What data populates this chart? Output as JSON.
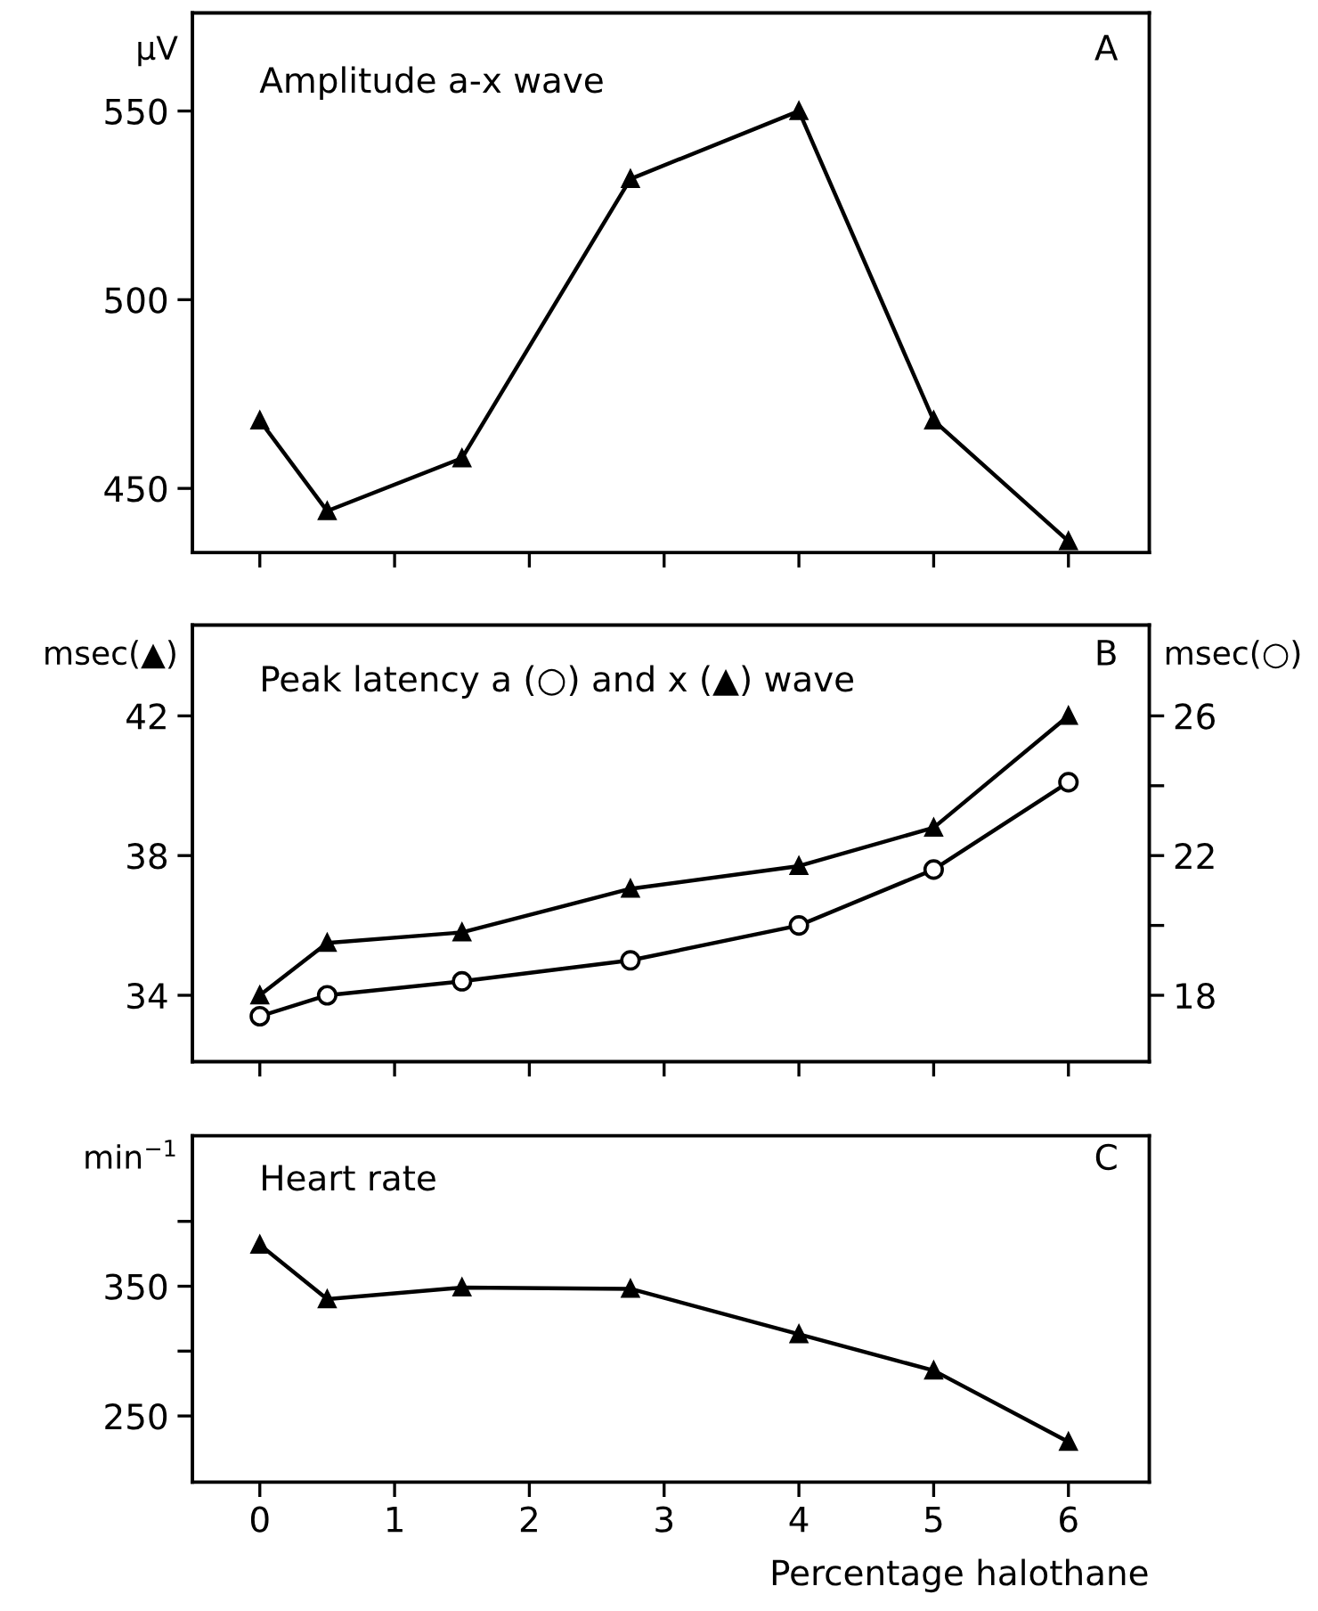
{
  "chart_data": [
    {
      "type": "line",
      "title": "Amplitude a-x wave",
      "ylabel": "µV",
      "annotations": [
        "A"
      ],
      "x": [
        0,
        0.5,
        1.5,
        2.75,
        4,
        5,
        6
      ],
      "series": [
        {
          "color": "#000000",
          "marker": "triangle",
          "values": [
            468,
            444,
            458,
            532,
            550,
            468,
            436
          ]
        }
      ],
      "xlim": [
        -0.5,
        6.6
      ],
      "xticks": [
        {
          "value": 0,
          "label": null
        },
        {
          "value": 1,
          "label": null
        },
        {
          "value": 2,
          "label": null
        },
        {
          "value": 3,
          "label": null
        },
        {
          "value": 4,
          "label": null
        },
        {
          "value": 5,
          "label": null
        },
        {
          "value": 6,
          "label": null
        }
      ],
      "ylim": [
        433,
        576
      ],
      "yticks": [
        450,
        500,
        550
      ],
      "tick_labels": "y",
      "line_style": "solid"
    },
    {
      "type": "line",
      "title": "Peak latency a (○) and x (▲) wave",
      "ylabel": "msec(▲)",
      "y2label": "msec(○)",
      "annotations": [
        "B"
      ],
      "x": [
        0,
        0.5,
        1.5,
        2.75,
        4,
        5,
        6
      ],
      "series": [
        {
          "color": "#000000",
          "marker": "triangle",
          "values": [
            34,
            35.5,
            35.8,
            37.05,
            37.7,
            38.8,
            42
          ]
        },
        {
          "color": "#000000",
          "marker": "circle",
          "axis": "y2",
          "values": [
            17.4,
            18,
            18.4,
            19,
            20,
            21.6,
            24.1
          ]
        }
      ],
      "xlim": [
        -0.5,
        6.6
      ],
      "xticks": [
        {
          "value": 0,
          "label": null
        },
        {
          "value": 1,
          "label": null
        },
        {
          "value": 2,
          "label": null
        },
        {
          "value": 3,
          "label": null
        },
        {
          "value": 4,
          "label": null
        },
        {
          "value": 5,
          "label": null
        },
        {
          "value": 6,
          "label": null
        }
      ],
      "ylim": [
        32.1,
        44.6
      ],
      "yticks": [
        34,
        38,
        42
      ],
      "y2lim": [
        16.1,
        28.6
      ],
      "y2ticks": [
        18,
        {
          "value": 20,
          "label": null
        },
        22,
        {
          "value": 24,
          "label": null
        },
        26
      ],
      "tick_labels": "y",
      "line_style": "solid"
    },
    {
      "type": "line",
      "title": "Heart rate",
      "ylabel": "min$^{−1}$",
      "xlabel": "Percentage halothane",
      "annotations": [
        "C"
      ],
      "x": [
        0,
        0.5,
        1.5,
        2.75,
        4,
        5,
        6
      ],
      "series": [
        {
          "color": "#000000",
          "marker": "triangle",
          "values": [
            382,
            340,
            349,
            348,
            313,
            285,
            230
          ]
        }
      ],
      "xlim": [
        -0.5,
        6.6
      ],
      "xticks": [
        0,
        1,
        2,
        3,
        4,
        5,
        6
      ],
      "ylim": [
        199,
        466
      ],
      "yticks": [
        250,
        {
          "value": 300,
          "label": null
        },
        350,
        {
          "value": 400,
          "label": null
        }
      ],
      "line_style": "solid"
    }
  ]
}
